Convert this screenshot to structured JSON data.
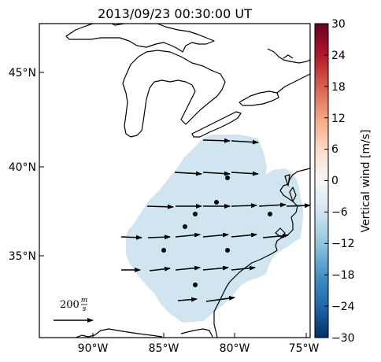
{
  "title": "2013/09/23 00:30:00 UT",
  "map": {
    "x_ticks": [
      "90°W",
      "85°W",
      "80°W",
      "75°W"
    ],
    "y_ticks": [
      "45°N",
      "40°N",
      "35°N"
    ],
    "scale_label_value": "200",
    "scale_label_unit_num": "m",
    "scale_label_unit_den": "s"
  },
  "colorbar": {
    "label": "Vertical wind [m/s]",
    "ticks": [
      "30",
      "24",
      "18",
      "12",
      "6",
      "0",
      "−6",
      "−12",
      "−18",
      "−24",
      "−30"
    ],
    "colors": [
      "#67001f",
      "#b2182b",
      "#d6604d",
      "#f4a582",
      "#fddbc7",
      "#f7f7f7",
      "#d1e5f0",
      "#92c5de",
      "#4393c3",
      "#2166ac",
      "#053061"
    ],
    "field_color": "#d1e5f0"
  }
}
